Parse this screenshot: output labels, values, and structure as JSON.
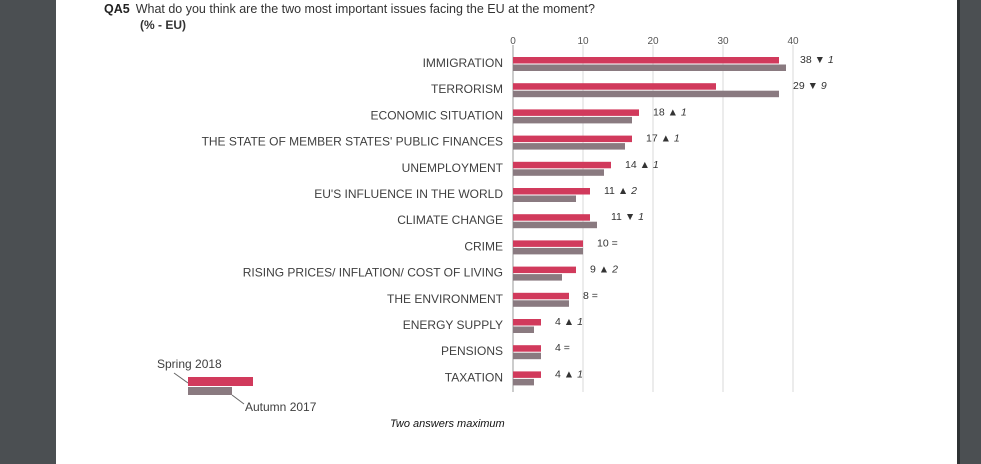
{
  "header": {
    "question_id": "QA5",
    "question": "What do you think are the two most important issues facing the EU at the moment?",
    "unit": "(% - EU)"
  },
  "footnote": "Two answers maximum",
  "colors": {
    "spring_2018": "#d13a5c",
    "autumn_2017": "#8a7a80",
    "axis_text": "#555555",
    "grid": "#d9d9d9",
    "label_text": "#404040"
  },
  "chart_data": {
    "type": "bar",
    "orientation": "horizontal",
    "xlim": [
      0,
      40
    ],
    "x_ticks": [
      "0",
      "10",
      "20",
      "30",
      "40"
    ],
    "grid": true,
    "legend_position": "bottom-left",
    "categories": [
      "IMMIGRATION",
      "TERRORISM",
      "ECONOMIC SITUATION",
      "THE STATE OF MEMBER STATES' PUBLIC FINANCES",
      "UNEMPLOYMENT",
      "EU'S INFLUENCE IN THE WORLD",
      "CLIMATE CHANGE",
      "CRIME",
      "RISING PRICES/ INFLATION/ COST OF LIVING",
      "THE ENVIRONMENT",
      "ENERGY SUPPLY",
      "PENSIONS",
      "TAXATION"
    ],
    "series": [
      {
        "name": "Spring 2018",
        "values": [
          38,
          29,
          18,
          17,
          14,
          11,
          11,
          10,
          9,
          8,
          4,
          4,
          4
        ]
      },
      {
        "name": "Autumn 2017",
        "values": [
          39,
          38,
          17,
          16,
          13,
          9,
          12,
          10,
          7,
          8,
          3,
          4,
          3
        ]
      }
    ],
    "data_labels": [
      {
        "value": "38",
        "arrow": "▼",
        "change": "1"
      },
      {
        "value": "29",
        "arrow": "▼",
        "change": "9"
      },
      {
        "value": "18",
        "arrow": "▲",
        "change": "1"
      },
      {
        "value": "17",
        "arrow": "▲",
        "change": "1"
      },
      {
        "value": "14",
        "arrow": "▲",
        "change": "1"
      },
      {
        "value": "11",
        "arrow": "▲",
        "change": "2"
      },
      {
        "value": "11",
        "arrow": "▼",
        "change": "1"
      },
      {
        "value": "10",
        "arrow": "=",
        "change": ""
      },
      {
        "value": "9",
        "arrow": "▲",
        "change": "2"
      },
      {
        "value": "8",
        "arrow": "=",
        "change": ""
      },
      {
        "value": "4",
        "arrow": "▲",
        "change": "1"
      },
      {
        "value": "4",
        "arrow": "=",
        "change": ""
      },
      {
        "value": "4",
        "arrow": "▲",
        "change": "1"
      }
    ]
  }
}
